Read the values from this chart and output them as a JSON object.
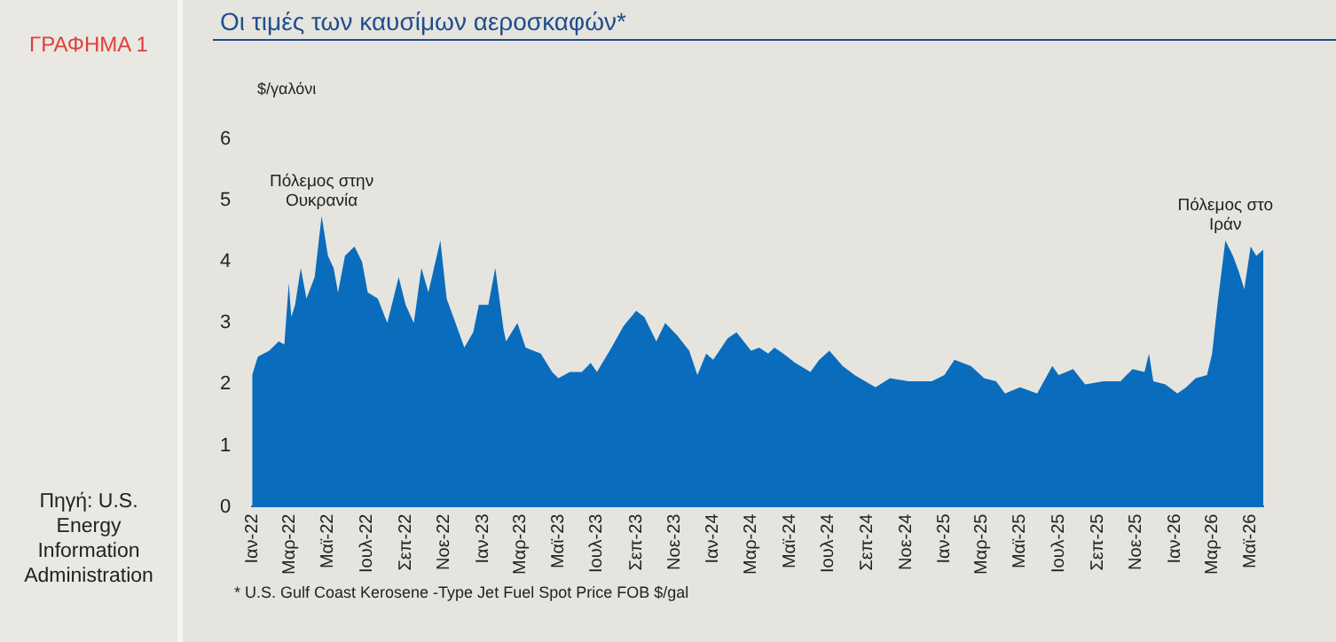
{
  "chart_data": {
    "type": "area",
    "title": "Οι τιμές των καυσίμων αεροσκαφών*",
    "ylabel": "$/γαλόνι",
    "annotations": [
      "ΓΡΑΦΗΜΑ 1",
      "Πηγή: U.S. Energy Information Administration",
      "* U.S. Gulf Coast Kerosene  -Type Jet Fuel Spot Price FOB $/gal",
      {
        "text": "Πόλεμος στην Ουκρανία",
        "x": "2022-04-21",
        "y": 4.75
      },
      {
        "text": "Πόλεμος στο Ιράν",
        "x": "2026-03-22",
        "y": 4.35
      }
    ],
    "x": [
      "2022-01-01",
      "2022-01-10",
      "2022-01-28",
      "2022-02-12",
      "2022-02-21",
      "2022-02-28",
      "2022-03-04",
      "2022-03-10",
      "2022-03-19",
      "2022-03-28",
      "2022-04-10",
      "2022-04-21",
      "2022-05-01",
      "2022-05-10",
      "2022-05-17",
      "2022-05-28",
      "2022-06-12",
      "2022-06-24",
      "2022-07-03",
      "2022-07-19",
      "2022-08-03",
      "2022-08-21",
      "2022-09-01",
      "2022-09-14",
      "2022-09-26",
      "2022-10-07",
      "2022-10-26",
      "2022-11-05",
      "2022-11-19",
      "2022-12-03",
      "2022-12-17",
      "2022-12-26",
      "2023-01-10",
      "2023-01-21",
      "2023-02-03",
      "2023-02-07",
      "2023-02-25",
      "2023-03-10",
      "2023-04-03",
      "2023-04-21",
      "2023-05-01",
      "2023-05-19",
      "2023-06-07",
      "2023-06-21",
      "2023-07-01",
      "2023-07-24",
      "2023-08-12",
      "2023-09-01",
      "2023-09-14",
      "2023-10-03",
      "2023-10-17",
      "2023-11-05",
      "2023-11-24",
      "2023-12-07",
      "2023-12-21",
      "2024-01-01",
      "2024-01-24",
      "2024-02-07",
      "2024-03-01",
      "2024-03-14",
      "2024-03-28",
      "2024-04-07",
      "2024-04-21",
      "2024-05-10",
      "2024-06-03",
      "2024-06-17",
      "2024-07-03",
      "2024-07-24",
      "2024-08-12",
      "2024-09-14",
      "2024-10-07",
      "2024-11-05",
      "2024-12-12",
      "2025-01-01",
      "2025-01-17",
      "2025-02-12",
      "2025-03-05",
      "2025-03-24",
      "2025-04-07",
      "2025-05-01",
      "2025-05-28",
      "2025-06-21",
      "2025-07-01",
      "2025-07-24",
      "2025-08-12",
      "2025-09-10",
      "2025-10-07",
      "2025-10-26",
      "2025-11-14",
      "2025-11-21",
      "2025-11-28",
      "2025-12-17",
      "2026-01-05",
      "2026-01-19",
      "2026-02-03",
      "2026-02-21",
      "2026-03-01",
      "2026-03-10",
      "2026-03-22",
      "2026-04-03",
      "2026-04-12",
      "2026-04-21",
      "2026-05-01",
      "2026-05-10",
      "2026-05-21"
    ],
    "values": [
      2.15,
      2.45,
      2.55,
      2.7,
      2.65,
      3.65,
      3.1,
      3.3,
      3.9,
      3.4,
      3.75,
      4.75,
      4.1,
      3.9,
      3.5,
      4.1,
      4.25,
      4.0,
      3.5,
      3.4,
      3.0,
      3.75,
      3.3,
      3.0,
      3.9,
      3.5,
      4.35,
      3.4,
      3.0,
      2.6,
      2.85,
      3.3,
      3.3,
      3.9,
      2.9,
      2.7,
      3.0,
      2.6,
      2.5,
      2.2,
      2.1,
      2.2,
      2.2,
      2.35,
      2.2,
      2.6,
      2.95,
      3.2,
      3.1,
      2.7,
      3.0,
      2.8,
      2.55,
      2.15,
      2.5,
      2.4,
      2.75,
      2.85,
      2.55,
      2.6,
      2.5,
      2.6,
      2.5,
      2.35,
      2.2,
      2.4,
      2.55,
      2.3,
      2.15,
      1.95,
      2.1,
      2.05,
      2.05,
      2.15,
      2.4,
      2.3,
      2.1,
      2.05,
      1.85,
      1.95,
      1.85,
      2.3,
      2.15,
      2.25,
      2.0,
      2.05,
      2.05,
      2.25,
      2.2,
      2.5,
      2.05,
      2.0,
      1.85,
      1.95,
      2.1,
      2.15,
      2.5,
      3.35,
      4.35,
      4.1,
      3.85,
      3.55,
      4.25,
      4.1,
      4.2
    ],
    "color": "#0a6cbd",
    "xlim": [
      "2022-01-01",
      "2026-05-21"
    ],
    "xticks": [
      {
        "value": "2022-01",
        "label": "Ιαν-22"
      },
      {
        "value": "2022-03",
        "label": "Μαρ-22"
      },
      {
        "value": "2022-05",
        "label": "Μαϊ-22"
      },
      {
        "value": "2022-07",
        "label": "Ιουλ-22"
      },
      {
        "value": "2022-09",
        "label": "Σεπ-22"
      },
      {
        "value": "2022-11",
        "label": "Νοε-22"
      },
      {
        "value": "2023-01",
        "label": "Ιαν-23"
      },
      {
        "value": "2023-03",
        "label": "Μαρ-23"
      },
      {
        "value": "2023-05",
        "label": "Μαϊ-23"
      },
      {
        "value": "2023-07",
        "label": "Ιουλ-23"
      },
      {
        "value": "2023-09",
        "label": "Σεπ-23"
      },
      {
        "value": "2023-11",
        "label": "Νοε-23"
      },
      {
        "value": "2024-01",
        "label": "Ιαν-24"
      },
      {
        "value": "2024-03",
        "label": "Μαρ-24"
      },
      {
        "value": "2024-05",
        "label": "Μαϊ-24"
      },
      {
        "value": "2024-07",
        "label": "Ιουλ-24"
      },
      {
        "value": "2024-09",
        "label": "Σεπ-24"
      },
      {
        "value": "2024-11",
        "label": "Νοε-24"
      },
      {
        "value": "2025-01",
        "label": "Ιαν-25"
      },
      {
        "value": "2025-03",
        "label": "Μαρ-25"
      },
      {
        "value": "2025-05",
        "label": "Μαϊ-25"
      },
      {
        "value": "2025-07",
        "label": "Ιουλ-25"
      },
      {
        "value": "2025-09",
        "label": "Σεπ-25"
      },
      {
        "value": "2025-11",
        "label": "Νοε-25"
      },
      {
        "value": "2026-01",
        "label": "Ιαν-26"
      },
      {
        "value": "2026-03",
        "label": "Μαρ-26"
      },
      {
        "value": "2026-05",
        "label": "Μαϊ-26"
      }
    ],
    "ylim": [
      0,
      6
    ],
    "yticks": [
      0,
      1,
      2,
      3,
      4,
      5,
      6
    ],
    "grid": false,
    "legend": false
  }
}
